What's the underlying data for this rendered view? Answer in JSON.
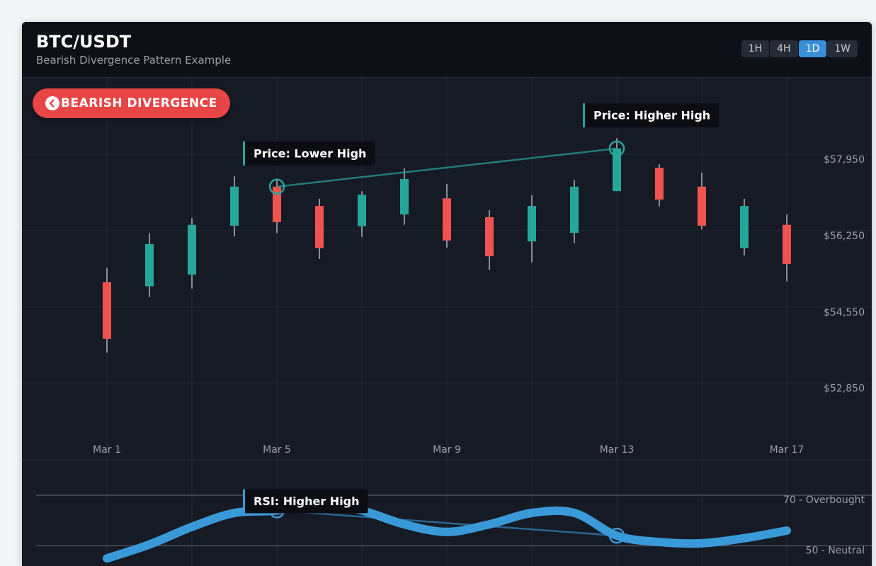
{
  "header": {
    "title": "BTC/USDT",
    "subtitle": "Bearish Divergence Pattern Example",
    "timeframes": [
      "1H",
      "4H",
      "1D",
      "1W"
    ],
    "active_timeframe": "1D"
  },
  "badge": "BEARISH DIVERGENCE",
  "chart_data": [
    {
      "type": "candlestick",
      "categories": [
        "Mar 1",
        null,
        null,
        null,
        "Mar 5",
        null,
        null,
        null,
        "Mar 9",
        null,
        null,
        null,
        "Mar 13",
        null,
        null,
        null,
        "Mar 17"
      ],
      "open": [
        55100,
        55010,
        55270,
        56360,
        57230,
        56800,
        56350,
        56610,
        56970,
        56550,
        56010,
        56200,
        57130,
        57650,
        57230,
        55860,
        56380
      ],
      "high": [
        55420,
        56190,
        56530,
        57460,
        57380,
        56960,
        57130,
        57640,
        57290,
        56710,
        57040,
        57380,
        58310,
        57730,
        57540,
        56960,
        56610
      ],
      "low": [
        53530,
        54770,
        54960,
        56120,
        56200,
        55620,
        56110,
        56380,
        55870,
        55370,
        55540,
        55970,
        57130,
        56790,
        56280,
        55700,
        55120
      ],
      "close": [
        53840,
        55950,
        56380,
        57230,
        56440,
        55860,
        57050,
        57400,
        56030,
        55680,
        56800,
        57230,
        58080,
        56940,
        56360,
        56800,
        55510
      ],
      "up_color": "#26a69a",
      "down_color": "#ef5350",
      "ylim": [
        51774,
        59654
      ],
      "yticks": [
        {
          "value": 52850,
          "label": "$52,850"
        },
        {
          "value": 54550,
          "label": "$54,550"
        },
        {
          "value": 56250,
          "label": "$56,250"
        },
        {
          "value": 57950,
          "label": "$57,950"
        }
      ],
      "grid": true,
      "annotations": [
        "Price: Lower High",
        "Price: Higher High"
      ]
    },
    {
      "type": "line",
      "categories": [
        "Mar 1",
        null,
        null,
        null,
        "Mar 5",
        null,
        null,
        null,
        "Mar 9",
        null,
        null,
        null,
        "Mar 13",
        null,
        null,
        null,
        "Mar 17"
      ],
      "series": [
        {
          "name": "RSI",
          "color": "#3a9ad9",
          "values": [
            45,
            50.5,
            57.5,
            63,
            64,
            67.5,
            64,
            58.5,
            55.5,
            58.5,
            63,
            63,
            54,
            51.5,
            51,
            53,
            56
          ]
        }
      ],
      "ylim": [
        42,
        84
      ],
      "yticks": [
        {
          "value": 50,
          "label": "50 - Neutral"
        },
        {
          "value": 70,
          "label": "70 - Overbought"
        }
      ],
      "grid": true,
      "annotations": [
        "RSI: Higher High"
      ]
    }
  ]
}
